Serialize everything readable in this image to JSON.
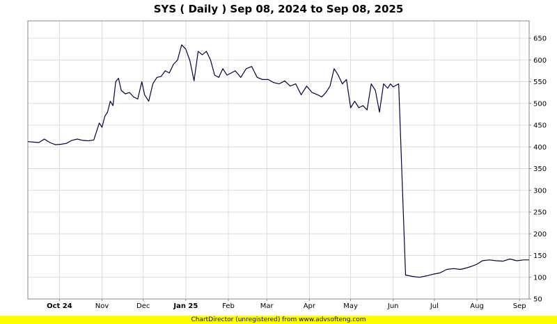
{
  "chart_data": {
    "type": "line",
    "title": "SYS ( Daily ) Sep 08, 2024 to Sep 08, 2025",
    "xlabel": "",
    "ylabel": "",
    "ylim": [
      50,
      690
    ],
    "yticks": [
      50,
      100,
      150,
      200,
      250,
      300,
      350,
      400,
      450,
      500,
      550,
      600,
      650
    ],
    "xlim": [
      "2024-09-08",
      "2025-09-08"
    ],
    "xticks": [
      {
        "label": "Oct 24",
        "date": "2024-10-01",
        "bold": true
      },
      {
        "label": "Nov",
        "date": "2024-11-01",
        "bold": false
      },
      {
        "label": "Dec",
        "date": "2024-12-01",
        "bold": false
      },
      {
        "label": "Jan 25",
        "date": "2025-01-01",
        "bold": true
      },
      {
        "label": "Feb",
        "date": "2025-02-01",
        "bold": false
      },
      {
        "label": "Mar",
        "date": "2025-03-01",
        "bold": false
      },
      {
        "label": "Apr",
        "date": "2025-04-01",
        "bold": false
      },
      {
        "label": "May",
        "date": "2025-05-01",
        "bold": false
      },
      {
        "label": "Jun",
        "date": "2025-06-01",
        "bold": false
      },
      {
        "label": "Jul",
        "date": "2025-07-01",
        "bold": false
      },
      {
        "label": "Aug",
        "date": "2025-08-01",
        "bold": false
      },
      {
        "label": "Sep",
        "date": "2025-09-01",
        "bold": false
      }
    ],
    "grid": true,
    "line_color": "#000040",
    "series": [
      {
        "x": [
          "2024-09-08",
          "2024-09-12",
          "2024-09-16",
          "2024-09-20",
          "2024-09-24",
          "2024-09-28",
          "2024-10-02",
          "2024-10-06",
          "2024-10-10",
          "2024-10-14",
          "2024-10-18",
          "2024-10-22",
          "2024-10-26",
          "2024-10-30",
          "2024-11-01",
          "2024-11-03",
          "2024-11-05",
          "2024-11-07",
          "2024-11-09",
          "2024-11-11",
          "2024-11-13",
          "2024-11-15",
          "2024-11-18",
          "2024-11-21",
          "2024-11-24",
          "2024-11-27",
          "2024-11-30",
          "2024-12-02",
          "2024-12-05",
          "2024-12-08",
          "2024-12-11",
          "2024-12-14",
          "2024-12-17",
          "2024-12-20",
          "2024-12-23",
          "2024-12-26",
          "2024-12-29",
          "2025-01-01",
          "2025-01-04",
          "2025-01-07",
          "2025-01-10",
          "2025-01-13",
          "2025-01-16",
          "2025-01-19",
          "2025-01-22",
          "2025-01-25",
          "2025-01-28",
          "2025-01-31",
          "2025-02-03",
          "2025-02-06",
          "2025-02-10",
          "2025-02-14",
          "2025-02-18",
          "2025-02-22",
          "2025-02-26",
          "2025-03-02",
          "2025-03-06",
          "2025-03-10",
          "2025-03-14",
          "2025-03-18",
          "2025-03-22",
          "2025-03-26",
          "2025-03-30",
          "2025-04-03",
          "2025-04-07",
          "2025-04-10",
          "2025-04-13",
          "2025-04-16",
          "2025-04-19",
          "2025-04-22",
          "2025-04-25",
          "2025-04-28",
          "2025-05-01",
          "2025-05-04",
          "2025-05-07",
          "2025-05-10",
          "2025-05-13",
          "2025-05-16",
          "2025-05-19",
          "2025-05-22",
          "2025-05-25",
          "2025-05-28",
          "2025-05-30",
          "2025-06-01",
          "2025-06-05",
          "2025-06-10",
          "2025-06-15",
          "2025-06-20",
          "2025-06-25",
          "2025-06-30",
          "2025-07-05",
          "2025-07-10",
          "2025-07-15",
          "2025-07-20",
          "2025-07-25",
          "2025-07-28",
          "2025-08-01",
          "2025-08-05",
          "2025-08-10",
          "2025-08-15",
          "2025-08-20",
          "2025-08-25",
          "2025-08-30",
          "2025-09-04",
          "2025-09-08"
        ],
        "y": [
          412,
          411,
          410,
          418,
          410,
          405,
          406,
          408,
          415,
          418,
          415,
          414,
          416,
          455,
          445,
          470,
          480,
          505,
          495,
          550,
          558,
          530,
          522,
          525,
          515,
          510,
          550,
          520,
          505,
          545,
          560,
          562,
          575,
          570,
          590,
          600,
          635,
          625,
          598,
          552,
          620,
          612,
          620,
          600,
          565,
          560,
          580,
          565,
          570,
          575,
          560,
          580,
          585,
          560,
          555,
          555,
          548,
          545,
          552,
          540,
          545,
          520,
          540,
          525,
          520,
          515,
          525,
          540,
          580,
          565,
          545,
          555,
          490,
          505,
          490,
          495,
          485,
          545,
          530,
          480,
          545,
          535,
          545,
          538,
          545,
          105,
          102,
          100,
          103,
          107,
          110,
          118,
          120,
          118,
          122,
          125,
          130,
          138,
          140,
          138,
          137,
          142,
          138,
          140,
          140
        ]
      }
    ]
  },
  "footer": {
    "text": "ChartDirector (unregistered) from www.advsofteng.com"
  }
}
